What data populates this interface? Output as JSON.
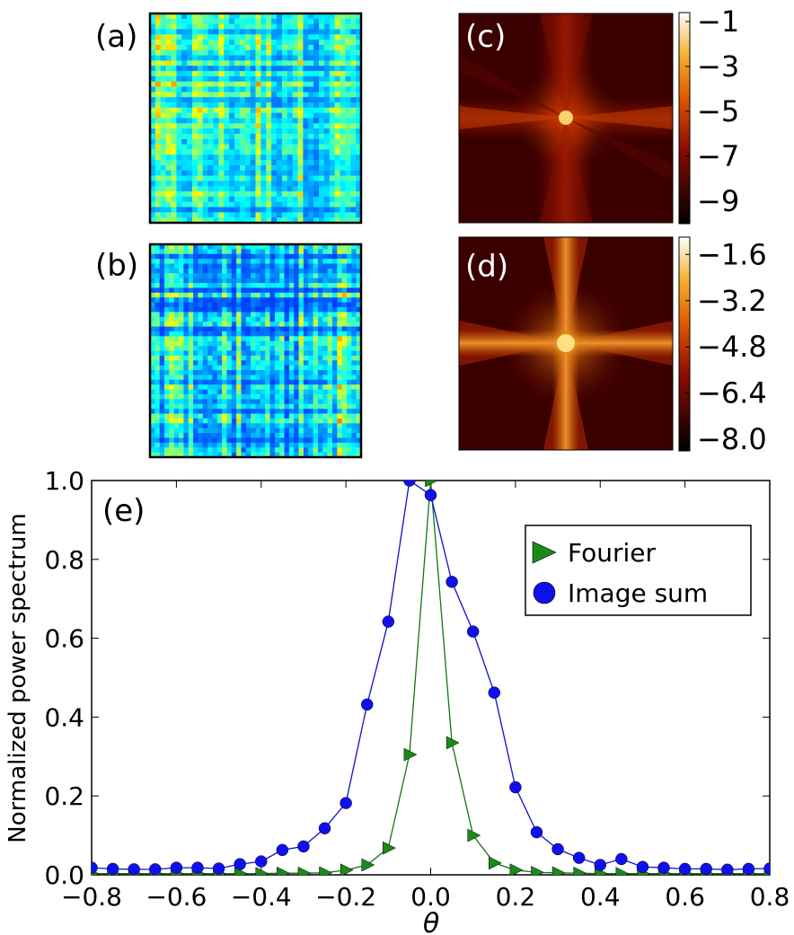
{
  "panels": {
    "a": {
      "label": "(a)"
    },
    "b": {
      "label": "(b)"
    },
    "c": {
      "label": "(c)",
      "colorbar_ticks": [
        "−1",
        "−3",
        "−5",
        "−7",
        "−9"
      ],
      "colorbar_values": [
        -1,
        -3,
        -5,
        -7,
        -9
      ],
      "colorbar_range": [
        -10,
        -0.6
      ]
    },
    "d": {
      "label": "(d)",
      "colorbar_ticks": [
        "−1.6",
        "−3.2",
        "−4.8",
        "−6.4",
        "−8.0"
      ],
      "colorbar_values": [
        -1.6,
        -3.2,
        -4.8,
        -6.4,
        -8.0
      ],
      "colorbar_range": [
        -8.4,
        -1.0
      ]
    }
  },
  "colors": {
    "fourier": "#1a8a1a",
    "fourier_line": "#117711",
    "image_sum": "#1010ee",
    "image_sum_line": "#1010cc"
  },
  "chart_data": {
    "type": "line",
    "panel_label": "(e)",
    "xlabel": "θ",
    "ylabel": "Normalized power spectrum",
    "xlim": [
      -0.8,
      0.8
    ],
    "ylim": [
      0.0,
      1.0
    ],
    "xticks": [
      -0.8,
      -0.6,
      -0.4,
      -0.2,
      0.0,
      0.2,
      0.4,
      0.6,
      0.8
    ],
    "xtick_labels": [
      "−0.8",
      "−0.6",
      "−0.4",
      "−0.2",
      "0.0",
      "0.2",
      "0.4",
      "0.6",
      "0.8"
    ],
    "yticks": [
      0.0,
      0.2,
      0.4,
      0.6,
      0.8,
      1.0
    ],
    "ytick_labels": [
      "0.0",
      "0.2",
      "0.4",
      "0.6",
      "0.8",
      "1.0"
    ],
    "legend_position": "upper-right",
    "series": [
      {
        "name": "Fourier",
        "marker": "triangle-right",
        "x": [
          -0.8,
          -0.75,
          -0.7,
          -0.65,
          -0.6,
          -0.55,
          -0.5,
          -0.45,
          -0.4,
          -0.35,
          -0.3,
          -0.25,
          -0.2,
          -0.15,
          -0.1,
          -0.05,
          0.0,
          0.05,
          0.1,
          0.15,
          0.2,
          0.25,
          0.3,
          0.35,
          0.4,
          0.45,
          0.5,
          0.55,
          0.6,
          0.65,
          0.7,
          0.75,
          0.8
        ],
        "y": [
          0.003,
          0.003,
          0.003,
          0.003,
          0.003,
          0.003,
          0.003,
          0.003,
          0.003,
          0.004,
          0.004,
          0.005,
          0.012,
          0.025,
          0.068,
          0.305,
          1.0,
          0.335,
          0.1,
          0.03,
          0.012,
          0.006,
          0.005,
          0.004,
          0.003,
          0.003,
          0.003,
          0.003,
          0.003,
          0.003,
          0.003,
          0.003,
          0.003
        ]
      },
      {
        "name": "Image sum",
        "marker": "circle",
        "x": [
          -0.8,
          -0.75,
          -0.7,
          -0.65,
          -0.6,
          -0.55,
          -0.5,
          -0.45,
          -0.4,
          -0.35,
          -0.3,
          -0.25,
          -0.2,
          -0.15,
          -0.1,
          -0.05,
          0.0,
          0.05,
          0.1,
          0.15,
          0.2,
          0.25,
          0.3,
          0.35,
          0.4,
          0.45,
          0.5,
          0.55,
          0.6,
          0.65,
          0.7,
          0.75,
          0.8
        ],
        "y": [
          0.018,
          0.015,
          0.014,
          0.014,
          0.018,
          0.018,
          0.016,
          0.027,
          0.034,
          0.063,
          0.072,
          0.118,
          0.182,
          0.432,
          0.642,
          1.0,
          0.963,
          0.743,
          0.617,
          0.462,
          0.222,
          0.108,
          0.065,
          0.043,
          0.025,
          0.04,
          0.02,
          0.018,
          0.015,
          0.015,
          0.013,
          0.015,
          0.016
        ]
      }
    ]
  }
}
